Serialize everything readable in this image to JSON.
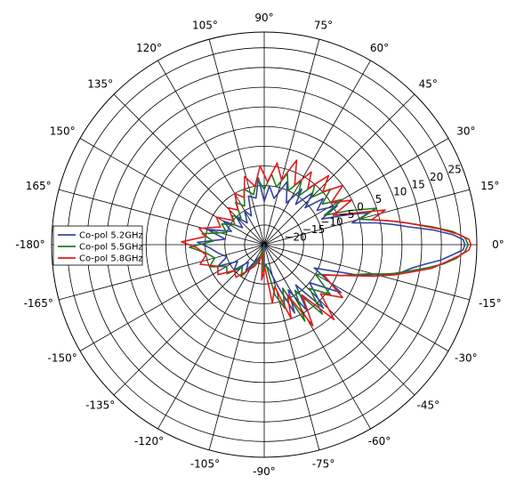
{
  "chart_data": {
    "type": "polar-line",
    "title": "",
    "angle_unit": "deg",
    "theta_ticks": [
      {
        "deg": 0,
        "label": "0°"
      },
      {
        "deg": 15,
        "label": "15°"
      },
      {
        "deg": 30,
        "label": "30°"
      },
      {
        "deg": 45,
        "label": "45°"
      },
      {
        "deg": 60,
        "label": "60°"
      },
      {
        "deg": 75,
        "label": "75°"
      },
      {
        "deg": 90,
        "label": "90°"
      },
      {
        "deg": 105,
        "label": "105°"
      },
      {
        "deg": 120,
        "label": "120°"
      },
      {
        "deg": 135,
        "label": "135°"
      },
      {
        "deg": 150,
        "label": "150°"
      },
      {
        "deg": 165,
        "label": "165°"
      },
      {
        "deg": 180,
        "label": "-180°"
      },
      {
        "deg": 195,
        "label": "-165°"
      },
      {
        "deg": 210,
        "label": "-150°"
      },
      {
        "deg": 225,
        "label": "-135°"
      },
      {
        "deg": 240,
        "label": "-120°"
      },
      {
        "deg": 255,
        "label": "-105°"
      },
      {
        "deg": 270,
        "label": "-90°"
      },
      {
        "deg": 285,
        "label": "-75°"
      },
      {
        "deg": 300,
        "label": "-60°"
      },
      {
        "deg": 315,
        "label": "-45°"
      },
      {
        "deg": 330,
        "label": "-30°"
      },
      {
        "deg": 345,
        "label": "-15°"
      }
    ],
    "r_min": -25,
    "r_max": 29,
    "r_ticks": [
      {
        "value": -20,
        "label": "−20"
      },
      {
        "value": -15,
        "label": "−15"
      },
      {
        "value": -10,
        "label": "−10"
      },
      {
        "value": -5,
        "label": "−5"
      },
      {
        "value": 0,
        "label": "0"
      },
      {
        "value": 5,
        "label": "5"
      },
      {
        "value": 10,
        "label": "10"
      },
      {
        "value": 15,
        "label": "15"
      },
      {
        "value": 20,
        "label": "20"
      },
      {
        "value": 25,
        "label": "25"
      }
    ],
    "r_label_angle_deg": 22.5,
    "grid": true,
    "legend_position": "left",
    "series": [
      {
        "name": "Co-pol 5.2GHz",
        "color": "#3444a0",
        "points": [
          [
            -100,
            -25
          ],
          [
            -90,
            -20
          ],
          [
            -80,
            -19
          ],
          [
            -72,
            -14
          ],
          [
            -66,
            -6
          ],
          [
            -62,
            -12
          ],
          [
            -57,
            -5
          ],
          [
            -52,
            -12
          ],
          [
            -47,
            -3
          ],
          [
            -40,
            -10
          ],
          [
            -32,
            -2
          ],
          [
            -25,
            -11
          ],
          [
            -18,
            0
          ],
          [
            -14,
            6
          ],
          [
            -12,
            10
          ],
          [
            -9,
            13
          ],
          [
            -7,
            16
          ],
          [
            -5,
            20
          ],
          [
            -3,
            23
          ],
          [
            -1.5,
            25.5
          ],
          [
            0,
            26
          ],
          [
            1.5,
            25.5
          ],
          [
            3,
            23
          ],
          [
            5,
            18
          ],
          [
            7,
            12
          ],
          [
            9,
            8
          ],
          [
            11,
            4
          ],
          [
            14,
            -2
          ],
          [
            17,
            3
          ],
          [
            20,
            -3
          ],
          [
            24,
            -9
          ],
          [
            28,
            -4
          ],
          [
            33,
            -9
          ],
          [
            38,
            -6
          ],
          [
            42,
            -11
          ],
          [
            47,
            -7
          ],
          [
            52,
            -12
          ],
          [
            56,
            -8
          ],
          [
            62,
            -13
          ],
          [
            70,
            -8
          ],
          [
            78,
            -13
          ],
          [
            85,
            -10
          ],
          [
            90,
            -14
          ],
          [
            95,
            -8
          ],
          [
            100,
            -13
          ],
          [
            108,
            -12
          ],
          [
            114,
            -17
          ],
          [
            120,
            -15
          ],
          [
            128,
            -18
          ],
          [
            135,
            -15
          ],
          [
            142,
            -18
          ],
          [
            150,
            -13
          ],
          [
            158,
            -16
          ],
          [
            165,
            -10
          ],
          [
            172,
            -15
          ],
          [
            178,
            -8
          ],
          [
            183,
            -11
          ],
          [
            190,
            -13
          ],
          [
            198,
            -15
          ],
          [
            205,
            -12
          ],
          [
            212,
            -17
          ],
          [
            220,
            -15
          ],
          [
            228,
            -19
          ],
          [
            235,
            -17
          ],
          [
            245,
            -21
          ],
          [
            252,
            -22
          ],
          [
            258,
            -25
          ]
        ]
      },
      {
        "name": "Co-pol 5.5GHz",
        "color": "#1f7a1f",
        "points": [
          [
            -100,
            -24
          ],
          [
            -92,
            -18
          ],
          [
            -85,
            -20
          ],
          [
            -78,
            -12
          ],
          [
            -72,
            -8
          ],
          [
            -67,
            -13
          ],
          [
            -62,
            -3
          ],
          [
            -56,
            -11
          ],
          [
            -50,
            -2
          ],
          [
            -44,
            -9
          ],
          [
            -37,
            -4
          ],
          [
            -30,
            -10
          ],
          [
            -22,
            -4
          ],
          [
            -16,
            2
          ],
          [
            -13,
            8
          ],
          [
            -10,
            13
          ],
          [
            -8,
            17
          ],
          [
            -6,
            21
          ],
          [
            -4,
            24
          ],
          [
            -2,
            26
          ],
          [
            0,
            26.8
          ],
          [
            2,
            26
          ],
          [
            4,
            23
          ],
          [
            6,
            18
          ],
          [
            8,
            13
          ],
          [
            10,
            9
          ],
          [
            12,
            5
          ],
          [
            15,
            0
          ],
          [
            18,
            5
          ],
          [
            22,
            -2
          ],
          [
            26,
            -8
          ],
          [
            30,
            -2
          ],
          [
            35,
            -7
          ],
          [
            40,
            -3
          ],
          [
            45,
            -8
          ],
          [
            50,
            -5
          ],
          [
            55,
            -10
          ],
          [
            60,
            -6
          ],
          [
            66,
            -10
          ],
          [
            72,
            -6
          ],
          [
            78,
            -10
          ],
          [
            84,
            -7
          ],
          [
            90,
            -11
          ],
          [
            96,
            -8
          ],
          [
            102,
            -12
          ],
          [
            110,
            -10
          ],
          [
            117,
            -14
          ],
          [
            124,
            -12
          ],
          [
            131,
            -16
          ],
          [
            138,
            -14
          ],
          [
            146,
            -16
          ],
          [
            154,
            -13
          ],
          [
            162,
            -15
          ],
          [
            170,
            -9
          ],
          [
            176,
            -12
          ],
          [
            182,
            -6
          ],
          [
            188,
            -10
          ],
          [
            195,
            -12
          ],
          [
            202,
            -10
          ],
          [
            210,
            -14
          ],
          [
            218,
            -13
          ],
          [
            226,
            -17
          ],
          [
            234,
            -15
          ],
          [
            242,
            -19
          ],
          [
            250,
            -21
          ],
          [
            258,
            -24
          ]
        ]
      },
      {
        "name": "Co-pol 5.8GHz",
        "color": "#e41a1c",
        "points": [
          [
            -100,
            -22
          ],
          [
            -94,
            -16
          ],
          [
            -88,
            -19
          ],
          [
            -82,
            -10
          ],
          [
            -76,
            -14
          ],
          [
            -70,
            -5
          ],
          [
            -65,
            -11
          ],
          [
            -59,
            -1
          ],
          [
            -53,
            -9
          ],
          [
            -47,
            1
          ],
          [
            -41,
            -6
          ],
          [
            -34,
            -1
          ],
          [
            -27,
            -8
          ],
          [
            -20,
            -2
          ],
          [
            -16,
            4
          ],
          [
            -13,
            9
          ],
          [
            -10,
            14
          ],
          [
            -8,
            18
          ],
          [
            -5,
            22
          ],
          [
            -3,
            25
          ],
          [
            -1.5,
            27
          ],
          [
            0,
            27.5
          ],
          [
            1.5,
            27
          ],
          [
            3,
            24.5
          ],
          [
            5,
            20
          ],
          [
            7,
            15
          ],
          [
            9,
            11
          ],
          [
            11,
            7
          ],
          [
            13,
            3
          ],
          [
            16,
            7
          ],
          [
            19,
            0
          ],
          [
            23,
            -6
          ],
          [
            27,
            0
          ],
          [
            32,
            -5
          ],
          [
            37,
            0
          ],
          [
            42,
            -5
          ],
          [
            47,
            -1
          ],
          [
            52,
            -7
          ],
          [
            57,
            -3
          ],
          [
            63,
            -8
          ],
          [
            69,
            -2
          ],
          [
            75,
            -8
          ],
          [
            81,
            -4
          ],
          [
            87,
            -9
          ],
          [
            93,
            -5
          ],
          [
            99,
            -10
          ],
          [
            106,
            -7
          ],
          [
            113,
            -12
          ],
          [
            120,
            -10
          ],
          [
            127,
            -14
          ],
          [
            134,
            -12
          ],
          [
            142,
            -15
          ],
          [
            150,
            -11
          ],
          [
            158,
            -13
          ],
          [
            166,
            -8
          ],
          [
            172,
            -10
          ],
          [
            178,
            -4
          ],
          [
            183,
            -8
          ],
          [
            190,
            -10
          ],
          [
            197,
            -8
          ],
          [
            205,
            -12
          ],
          [
            213,
            -11
          ],
          [
            221,
            -15
          ],
          [
            229,
            -14
          ],
          [
            237,
            -17
          ],
          [
            246,
            -19
          ],
          [
            254,
            -21
          ],
          [
            260,
            -23
          ]
        ]
      }
    ]
  }
}
